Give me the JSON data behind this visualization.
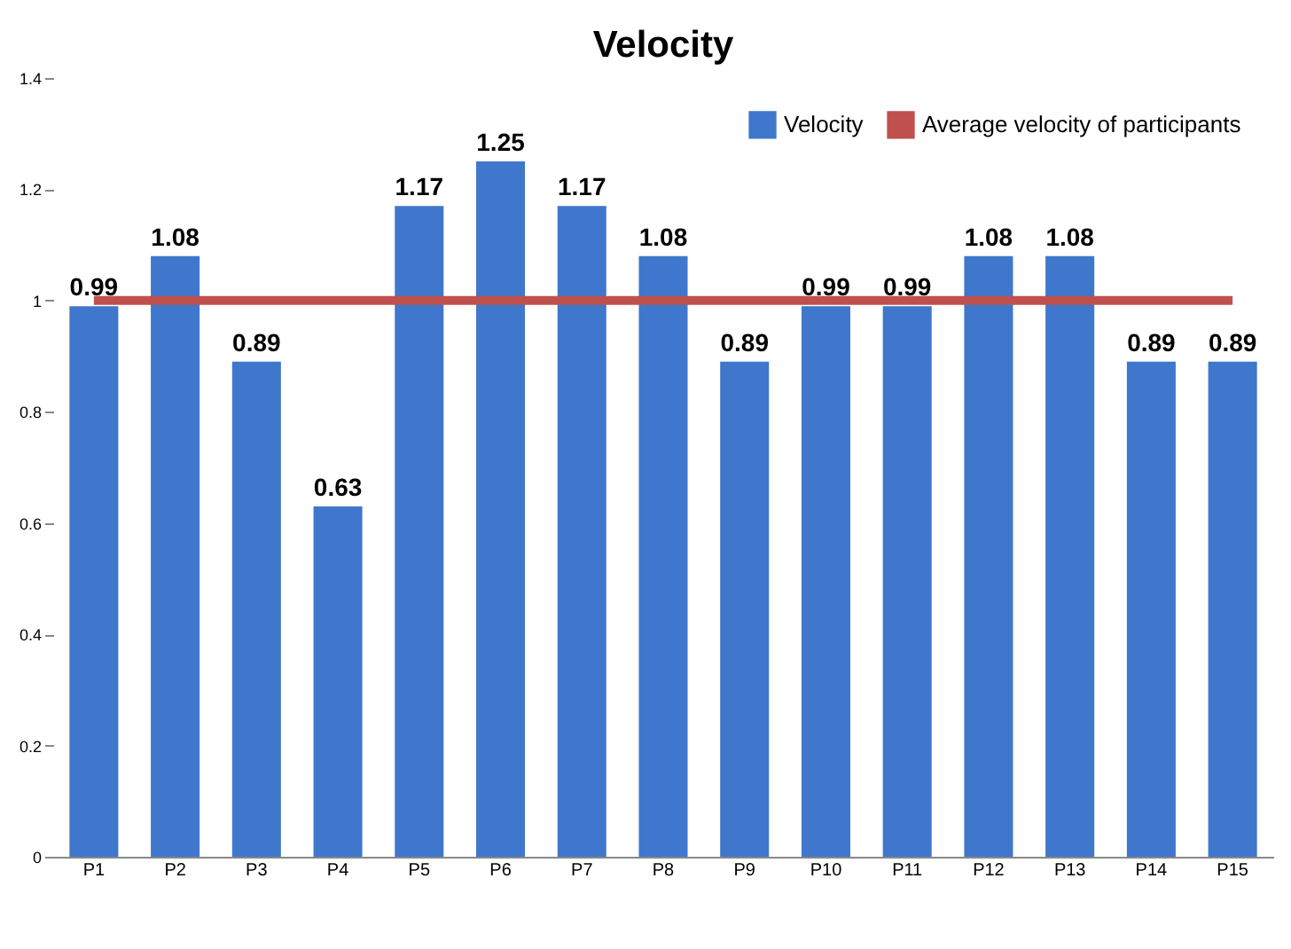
{
  "chart_data": {
    "type": "bar",
    "title": "Velocity",
    "categories": [
      "P1",
      "P2",
      "P3",
      "P4",
      "P5",
      "P6",
      "P7",
      "P8",
      "P9",
      "P10",
      "P11",
      "P12",
      "P13",
      "P14",
      "P15"
    ],
    "series": [
      {
        "name": "Velocity",
        "color": "#3f77cc",
        "values": [
          0.99,
          1.08,
          0.89,
          0.63,
          1.17,
          1.25,
          1.17,
          1.08,
          0.89,
          0.99,
          0.99,
          1.08,
          1.08,
          0.89,
          0.89
        ],
        "value_labels": [
          "0.99",
          "1.08",
          "0.89",
          "0.63",
          "1.17",
          "1.25",
          "1.17",
          "1.08",
          "0.89",
          "0.99",
          "0.99",
          "1.08",
          "1.08",
          "0.89",
          "0.89"
        ]
      },
      {
        "name": "Average velocity of participants",
        "type": "line",
        "color": "#c0504d",
        "values": [
          1,
          1,
          1,
          1,
          1,
          1,
          1,
          1,
          1,
          1,
          1,
          1,
          1,
          1,
          1
        ]
      }
    ],
    "ylim": [
      0,
      1.4
    ],
    "yticks": [
      0,
      0.2,
      0.4,
      0.6,
      0.8,
      1,
      1.2,
      1.4
    ],
    "grid": false,
    "legend": "top right"
  }
}
